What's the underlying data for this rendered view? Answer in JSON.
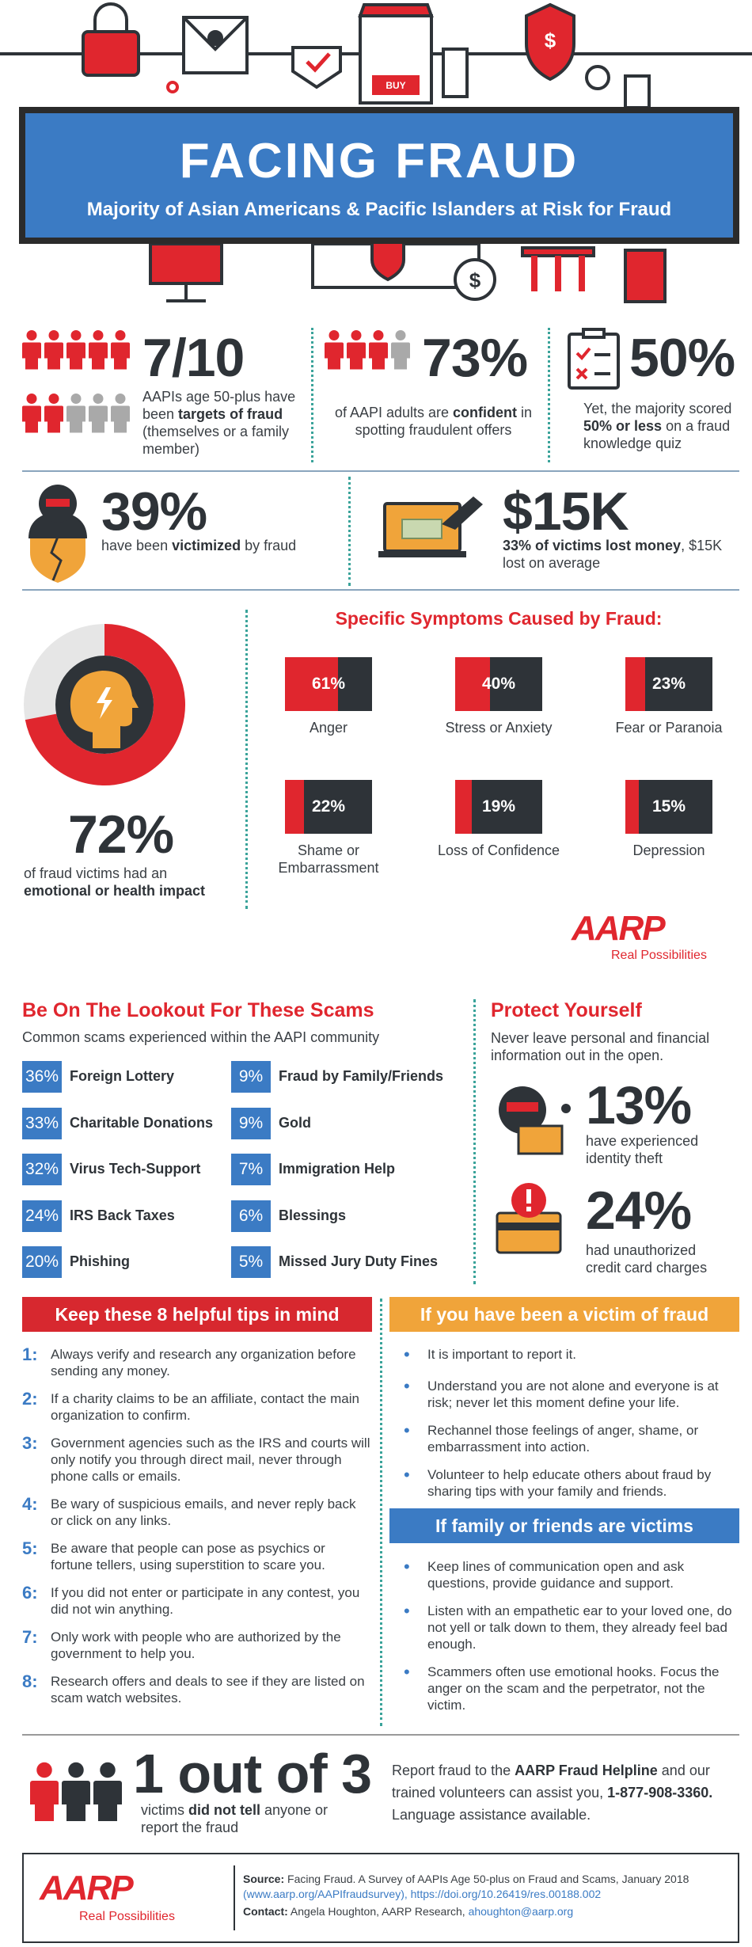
{
  "illustration": {
    "buy_label": "BUY"
  },
  "header": {
    "title": "FACING FRAUD",
    "subtitle": "Majority of Asian Americans & Pacific Islanders at Risk for Fraud"
  },
  "stats": [
    {
      "figure": "7/10",
      "text": [
        "AAPIs age 50-plus have been ",
        "targets of fraud",
        " (themselves or a family member)"
      ]
    },
    {
      "figure": "73%",
      "text": [
        "of AAPI adults are ",
        "confident",
        " in spotting fraudulent offers"
      ]
    },
    {
      "figure": "50%",
      "text": [
        "Yet, the majority scored ",
        "50% or less",
        " on a fraud knowledge quiz"
      ]
    },
    {
      "figure": "39%",
      "text": [
        "have been ",
        "victimized",
        " by fraud"
      ]
    },
    {
      "figure": "$15K",
      "text": [
        "33% of victims lost money",
        ", $15K lost on average"
      ]
    }
  ],
  "impact": {
    "figure": {
      "value": 72,
      "label": "72%"
    },
    "text": [
      "of fraud victims had an ",
      "emotional or health impact"
    ]
  },
  "symptoms": {
    "title": "Specific Symptoms Caused by Fraud:",
    "items": [
      {
        "value": 61,
        "label": "61%",
        "name": "Anger"
      },
      {
        "value": 40,
        "label": "40%",
        "name": "Stress or Anxiety"
      },
      {
        "value": 23,
        "label": "23%",
        "name": "Fear or Paranoia"
      },
      {
        "value": 22,
        "label": "22%",
        "name": "Shame or Embarrassment"
      },
      {
        "value": 19,
        "label": "19%",
        "name": "Loss of Confidence"
      },
      {
        "value": 15,
        "label": "15%",
        "name": "Depression"
      }
    ]
  },
  "brand": {
    "logo": "AARP",
    "tagline": "Real Possibilities"
  },
  "scams": {
    "title": "Be On The Lookout For These Scams",
    "subtitle": "Common scams experienced within the AAPI community",
    "items": [
      {
        "share": "36%",
        "name": "Foreign Lottery"
      },
      {
        "share": "33%",
        "name": "Charitable Donations"
      },
      {
        "share": "32%",
        "name": "Virus Tech-Support"
      },
      {
        "share": "24%",
        "name": "IRS Back Taxes"
      },
      {
        "share": "20%",
        "name": "Phishing"
      },
      {
        "share": "9%",
        "name": "Fraud by Family/Friends"
      },
      {
        "share": "9%",
        "name": "Gold"
      },
      {
        "share": "7%",
        "name": "Immigration Help"
      },
      {
        "share": "6%",
        "name": "Blessings"
      },
      {
        "share": "5%",
        "name": "Missed Jury Duty Fines"
      }
    ]
  },
  "protect": {
    "title": "Protect Yourself",
    "subtitle": "Never leave personal and financial information out in the open.",
    "stats": [
      {
        "figure": "13%",
        "text": "have experienced identity theft"
      },
      {
        "figure": "24%",
        "text": "had unauthorized credit card charges"
      }
    ]
  },
  "tips": {
    "title": "Keep these 8 helpful tips in mind",
    "items": [
      {
        "number": "1:",
        "text": "Always verify and research any organization before sending any money."
      },
      {
        "number": "2:",
        "text": "If a charity claims to be an affiliate, contact the main organization to confirm."
      },
      {
        "number": "3:",
        "text": "Government agencies such as the IRS and courts will only notify you through direct mail, never through phone calls or emails."
      },
      {
        "number": "4:",
        "text": "Be wary of suspicious emails, and never reply back or click on any links."
      },
      {
        "number": "5:",
        "text": "Be aware that people can pose as psychics or fortune tellers, using superstition to scare you."
      },
      {
        "number": "6:",
        "text": "If you did not enter or participate in any contest, you did not win anything."
      },
      {
        "number": "7:",
        "text": "Only work with people who are authorized by the government to help you."
      },
      {
        "number": "8:",
        "text": "Research offers and deals to see if they are listed on scam watch websites."
      }
    ]
  },
  "victim": {
    "title": "If you have been a victim of fraud",
    "items": [
      "It is important to report it.",
      "Understand you are not alone and everyone is at risk; never let this moment define your life.",
      "Rechannel those feelings of anger, shame, or embarrassment into action.",
      "Volunteer to help educate others about fraud by sharing tips with your family and friends."
    ]
  },
  "family": {
    "title": "If family or friends are victims",
    "items": [
      "Keep lines of communication open and ask questions, provide guidance and support.",
      "Listen with an empathetic ear to your loved one, do not yell or talk down to them, they already feel bad enough.",
      "Scammers often use emotional hooks. Focus the anger on the scam and the perpetrator, not the victim."
    ]
  },
  "ratio": {
    "figure": "1 out of 3",
    "text": [
      "victims ",
      "did not tell",
      " anyone or report the fraud"
    ]
  },
  "helpline": {
    "text": [
      "Report fraud to the ",
      "AARP Fraud Helpline",
      " and our trained volunteers can assist you, ",
      "1-877-908-3360.",
      " Language assistance available."
    ]
  },
  "footer": {
    "source_label": "Source:",
    "source": "Facing Fraud. A Survey of AAPIs Age 50-plus on Fraud and Scams, January 2018 ",
    "source_url": "(www.aarp.org/AAPIfraudsurvey)",
    "source_doi": ", https://doi.org/10.26419/res.00188.002",
    "contact_label": "Contact:",
    "contact": "Angela Houghton, AARP Research, ",
    "email": "ahoughton@aarp.org"
  }
}
